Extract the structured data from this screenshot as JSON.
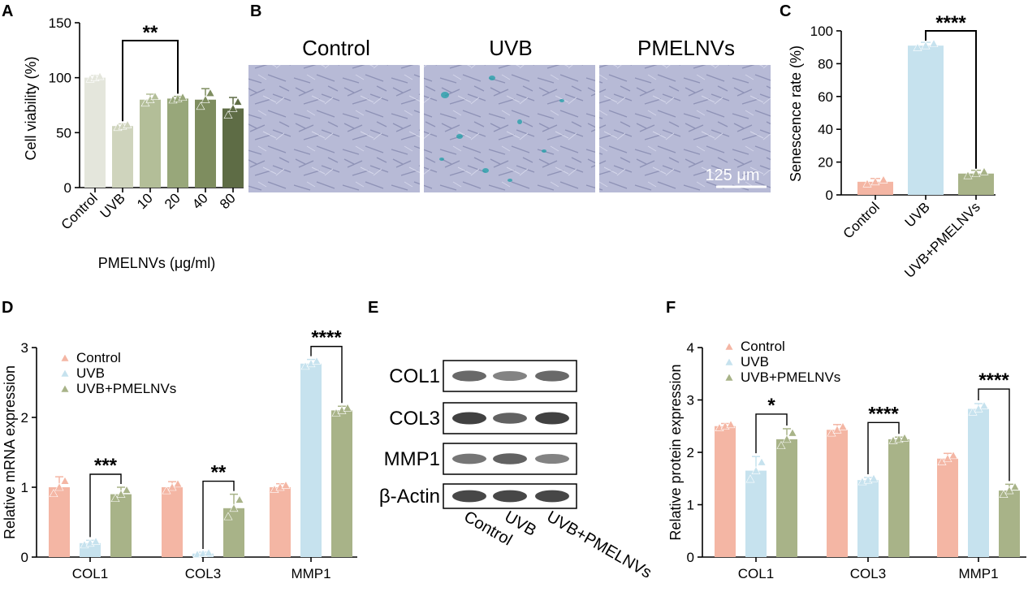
{
  "colors": {
    "control": "#f4b6a4",
    "uvb": "#c6e2ee",
    "pmelnvs": "#a8b388",
    "panelA": [
      "#e4e6dc",
      "#cfd4bd",
      "#b3be98",
      "#98a77a",
      "#7e8d5f",
      "#5e6c45"
    ],
    "micrograph_bg": "#b9bcd8",
    "stain": "#1fa0a8"
  },
  "panels": {
    "A": {
      "letter": "A"
    },
    "B": {
      "letter": "B",
      "titles": [
        "Control",
        "UVB",
        "PMELNVs"
      ],
      "scale_label": "125 μm"
    },
    "C": {
      "letter": "C"
    },
    "D": {
      "letter": "D"
    },
    "E": {
      "letter": "E",
      "rows": [
        "COL1",
        "COL3",
        "MMP1",
        "β-Actin"
      ],
      "columns": [
        "Control",
        "UVB",
        "UVB+PMELNVs"
      ]
    },
    "F": {
      "letter": "F"
    }
  },
  "chart_data": [
    {
      "id": "A",
      "type": "bar",
      "categories": [
        "Control",
        "UVB",
        "10",
        "20",
        "40",
        "80"
      ],
      "values": [
        100,
        56,
        80,
        81,
        80,
        72
      ],
      "errors": [
        2,
        2,
        5,
        2,
        10,
        10
      ],
      "ylabel": "Cell viability (%)",
      "xlabel": "PMELNVs (μg/ml)",
      "ylim": [
        0,
        150
      ],
      "yticks": [
        0,
        50,
        100,
        150
      ],
      "significance": [
        {
          "from": 1,
          "to": 3,
          "label": "**"
        }
      ]
    },
    {
      "id": "C",
      "type": "bar",
      "categories": [
        "Control",
        "UVB",
        "UVB+PMELNVs"
      ],
      "values": [
        8,
        91,
        13
      ],
      "errors": [
        2,
        2,
        2
      ],
      "ylabel": "Senescence rate (%)",
      "ylim": [
        0,
        100
      ],
      "yticks": [
        0,
        20,
        40,
        60,
        80,
        100
      ],
      "significance": [
        {
          "from": 1,
          "to": 2,
          "label": "****"
        }
      ]
    },
    {
      "id": "D",
      "type": "bar",
      "categories": [
        "COL1",
        "COL3",
        "MMP1"
      ],
      "series": [
        {
          "name": "Control",
          "values": [
            1.0,
            1.0,
            1.0
          ],
          "errors": [
            0.15,
            0.08,
            0.05
          ]
        },
        {
          "name": "UVB",
          "values": [
            0.2,
            0.05,
            2.77
          ],
          "errors": [
            0.04,
            0.02,
            0.06
          ]
        },
        {
          "name": "UVB+PMELNVs",
          "values": [
            0.9,
            0.7,
            2.1
          ],
          "errors": [
            0.1,
            0.2,
            0.06
          ]
        }
      ],
      "ylabel": "Relative mRNA expression",
      "ylim": [
        0,
        3
      ],
      "yticks": [
        0,
        1,
        2,
        3
      ],
      "significance": [
        {
          "group": 0,
          "from": 1,
          "to": 2,
          "label": "***"
        },
        {
          "group": 1,
          "from": 1,
          "to": 2,
          "label": "**"
        },
        {
          "group": 2,
          "from": 1,
          "to": 2,
          "label": "****"
        }
      ]
    },
    {
      "id": "F",
      "type": "bar",
      "categories": [
        "COL1",
        "COL3",
        "MMP1"
      ],
      "series": [
        {
          "name": "Control",
          "values": [
            2.5,
            2.43,
            1.88
          ],
          "errors": [
            0.05,
            0.1,
            0.1
          ]
        },
        {
          "name": "UVB",
          "values": [
            1.65,
            1.47,
            2.83
          ],
          "errors": [
            0.27,
            0.05,
            0.1
          ]
        },
        {
          "name": "UVB+PMELNVs",
          "values": [
            2.25,
            2.25,
            1.27
          ],
          "errors": [
            0.2,
            0.04,
            0.12
          ]
        }
      ],
      "ylabel": "Relative protein expression",
      "ylim": [
        0,
        4
      ],
      "yticks": [
        0,
        1,
        2,
        3,
        4
      ],
      "significance": [
        {
          "group": 0,
          "from": 1,
          "to": 2,
          "label": "*"
        },
        {
          "group": 1,
          "from": 1,
          "to": 2,
          "label": "****"
        },
        {
          "group": 2,
          "from": 1,
          "to": 2,
          "label": "****"
        }
      ]
    }
  ]
}
